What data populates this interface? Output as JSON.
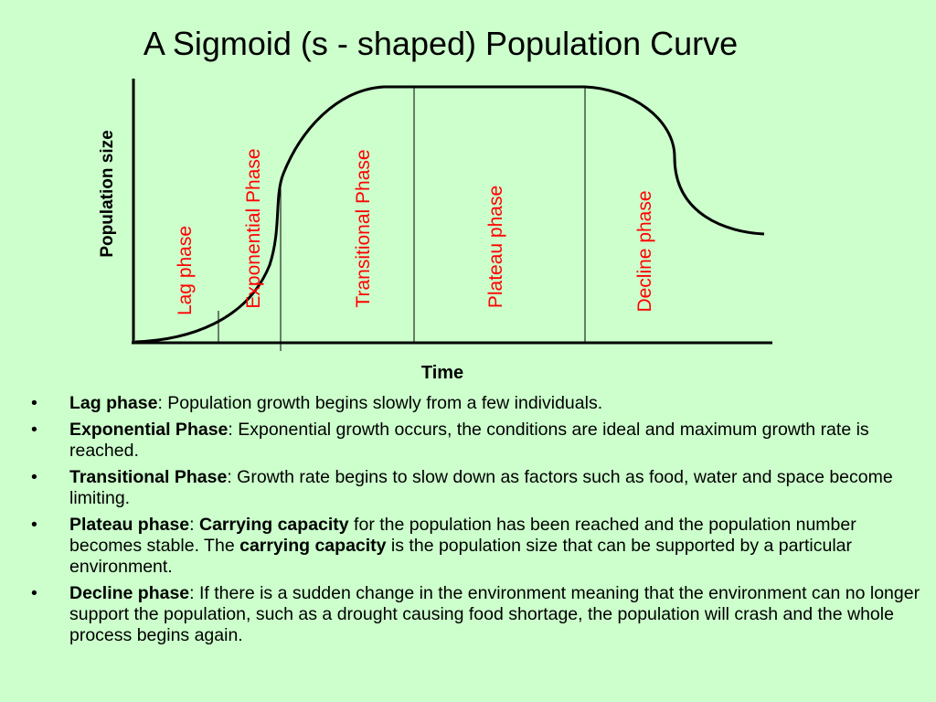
{
  "title": "A Sigmoid (s - shaped) Population Curve",
  "diagram": {
    "y_axis_label": "Population size",
    "x_axis_label": "Time",
    "curve_color": "#000000",
    "phase_label_color": "#ff0000",
    "phases": [
      {
        "label": "Lag phase"
      },
      {
        "label": "Exponential Phase"
      },
      {
        "label": "Transitional Phase"
      },
      {
        "label": "Plateau phase"
      },
      {
        "label": "Decline phase"
      }
    ]
  },
  "bullet_glyph": "•",
  "bullets": [
    {
      "term": "Lag phase",
      "sep": ": ",
      "text": "Population growth begins slowly from a few individuals."
    },
    {
      "term": "Exponential Phase",
      "sep": ": ",
      "text": "Exponential growth occurs, the conditions are ideal and maximum growth rate is reached."
    },
    {
      "term": "Transitional Phase",
      "sep": ": ",
      "text": "Growth rate begins to slow down as factors such as food, water and space become limiting."
    },
    {
      "term": "Plateau phase",
      "sep": ": ",
      "bold2": "Carrying capacity",
      "text": " for the population has been reached and the population number becomes stable. The ",
      "bold3": "carrying capacity",
      "text2": " is the population size that can be supported by a particular environment."
    },
    {
      "term": "Decline phase",
      "sep": ": ",
      "text": "If there is a sudden change in the environment meaning that the environment can no longer support the population, such as a drought causing food shortage, the population will crash and the whole process begins again."
    }
  ]
}
